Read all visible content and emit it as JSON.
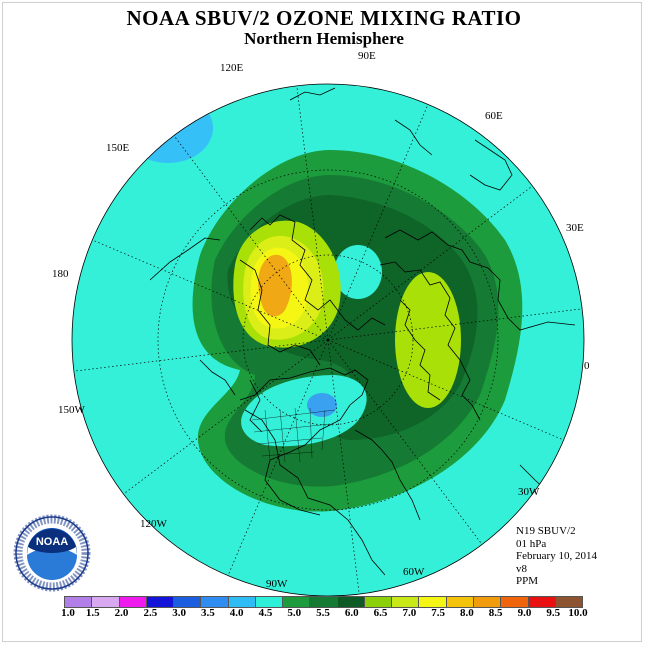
{
  "header": {
    "title": "NOAA SBUV/2 OZONE MIXING RATIO",
    "subtitle": "Northern Hemisphere"
  },
  "longitude_labels": {
    "lon_90e": "90E",
    "lon_60e": "60E",
    "lon_30e": "30E",
    "lon_0": "0",
    "lon_30w": "30W",
    "lon_60w": "60W",
    "lon_90w": "90W",
    "lon_120w": "120W",
    "lon_150w": "150W",
    "lon_180": "180",
    "lon_150e": "150E",
    "lon_120e": "120E"
  },
  "info": {
    "satellite": "N19 SBUV/2",
    "level": "01 hPa",
    "date": "February 10, 2014",
    "version": "v8",
    "units": "PPM"
  },
  "logo": {
    "text": "NOAA",
    "ring_text": "NATIONAL OCEANIC AND ATMOSPHERIC ADMINISTRATION · U.S. DEPARTMENT OF COMMERCE"
  },
  "colorbar": {
    "labels": [
      "1.0",
      "1.5",
      "2.0",
      "2.5",
      "3.0",
      "3.5",
      "4.0",
      "4.5",
      "5.0",
      "5.5",
      "6.0",
      "6.5",
      "7.0",
      "7.5",
      "8.0",
      "8.5",
      "9.0",
      "9.5",
      "10.0"
    ],
    "colors": [
      "#b27ee8",
      "#d8a8f0",
      "#ee1aee",
      "#1414d8",
      "#1c5ee0",
      "#2f8cf0",
      "#2fbcf4",
      "#2ef0d8",
      "#1c9c3c",
      "#157a33",
      "#0d5a24",
      "#8cd00c",
      "#c8e818",
      "#f6f614",
      "#f4c40c",
      "#f09c0c",
      "#f0640c",
      "#e81010",
      "#8c5430"
    ]
  },
  "map_colors": {
    "ocean_cyan": "#34f0d8",
    "band_5_5": "#1c9c3c",
    "band_6_0": "#157a33",
    "band_6_5": "#0f6428",
    "light_green": "#a8e008",
    "yellow_green": "#dcee18",
    "yellow": "#f6f614",
    "orange": "#f0a814",
    "light_blue": "#36c0f8",
    "mid_blue": "#3aa0f0"
  }
}
